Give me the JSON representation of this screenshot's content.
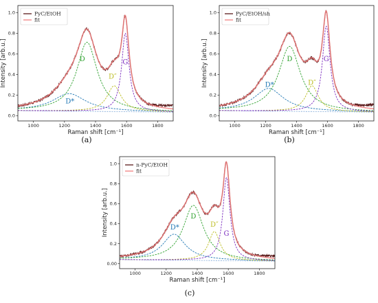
{
  "chart_data": [
    {
      "type": "line",
      "panel_label": "(a)",
      "xlabel": "Raman shift [cm⁻¹]",
      "ylabel": "Intensity [arb.u.]",
      "xlim": [
        900,
        1900
      ],
      "ylim": [
        -0.05,
        1.07
      ],
      "xticks": [
        1000,
        1200,
        1400,
        1600,
        1800
      ],
      "yticks": [
        0.0,
        0.2,
        0.4,
        0.6,
        0.8,
        1.0
      ],
      "ytick_labels": [
        "0.0",
        "0.2",
        "0.4",
        "0.6",
        "0.8",
        "1.0"
      ],
      "legend": {
        "position": "top-left",
        "entries": [
          "PyC/EtOH",
          "fit"
        ]
      },
      "baseline": {
        "start": 0.05,
        "end": 0.035
      },
      "measured_end_offset": 0.035,
      "peaks": [
        {
          "name": "D*",
          "center": 1230,
          "height": 0.17,
          "width": 260,
          "color": "#1f77b4",
          "label_x": 1235,
          "label_y": 0.12
        },
        {
          "name": "D",
          "center": 1345,
          "height": 0.67,
          "width": 160,
          "color": "#2ca02c",
          "label_x": 1315,
          "label_y": 0.53
        },
        {
          "name": "D″",
          "center": 1520,
          "height": 0.25,
          "width": 110,
          "color": "#bcbd22",
          "label_x": 1510,
          "label_y": 0.36
        },
        {
          "name": "G",
          "center": 1592,
          "height": 0.76,
          "width": 58,
          "color": "#7b2cbf",
          "label_x": 1592,
          "label_y": 0.5
        }
      ]
    },
    {
      "type": "line",
      "panel_label": "(b)",
      "xlabel": "Raman shift [cm⁻¹]",
      "ylabel": "Intensity [arb.u.]",
      "xlim": [
        900,
        1900
      ],
      "ylim": [
        -0.05,
        1.07
      ],
      "xticks": [
        1000,
        1200,
        1400,
        1600,
        1800
      ],
      "yticks": [
        0.0,
        0.2,
        0.4,
        0.6,
        0.8,
        1.0
      ],
      "ytick_labels": [
        "0.0",
        "0.2",
        "0.4",
        "0.6",
        "0.8",
        "1.0"
      ],
      "legend": {
        "position": "top-left",
        "entries": [
          "PyC/EtOH/sh",
          "fit"
        ]
      },
      "baseline": {
        "start": 0.05,
        "end": 0.035
      },
      "measured_end_offset": 0.04,
      "peaks": [
        {
          "name": "D*",
          "center": 1220,
          "height": 0.22,
          "width": 230,
          "color": "#1f77b4",
          "label_x": 1225,
          "label_y": 0.28
        },
        {
          "name": "D",
          "center": 1355,
          "height": 0.63,
          "width": 170,
          "color": "#2ca02c",
          "label_x": 1355,
          "label_y": 0.53
        },
        {
          "name": "D″",
          "center": 1500,
          "height": 0.25,
          "width": 100,
          "color": "#bcbd22",
          "label_x": 1500,
          "label_y": 0.3
        },
        {
          "name": "G",
          "center": 1592,
          "height": 0.83,
          "width": 60,
          "color": "#7b2cbf",
          "label_x": 1592,
          "label_y": 0.53
        }
      ]
    },
    {
      "type": "line",
      "panel_label": "(c)",
      "xlabel": "Raman shift [cm⁻¹]",
      "ylabel": "Intensity [arb.u.]",
      "xlim": [
        900,
        1900
      ],
      "ylim": [
        -0.05,
        1.07
      ],
      "xticks": [
        1000,
        1200,
        1400,
        1600,
        1800
      ],
      "yticks": [
        0.0,
        0.2,
        0.4,
        0.6,
        0.8,
        1.0
      ],
      "ytick_labels": [
        "0.00",
        "0.2",
        "0.4",
        "0.6",
        "0.8",
        "1.0"
      ],
      "legend": {
        "position": "top-left",
        "entries": [
          "n-PyC/EtOH",
          "fit"
        ]
      },
      "baseline": {
        "start": 0.04,
        "end": 0.025
      },
      "measured_end_offset": 0.025,
      "peaks": [
        {
          "name": "D*",
          "center": 1250,
          "height": 0.26,
          "width": 180,
          "color": "#1f77b4",
          "label_x": 1255,
          "label_y": 0.34
        },
        {
          "name": "D",
          "center": 1375,
          "height": 0.55,
          "width": 160,
          "color": "#2ca02c",
          "label_x": 1375,
          "label_y": 0.45
        },
        {
          "name": "D″",
          "center": 1510,
          "height": 0.29,
          "width": 90,
          "color": "#bcbd22",
          "label_x": 1510,
          "label_y": 0.37
        },
        {
          "name": "G",
          "center": 1588,
          "height": 0.83,
          "width": 56,
          "color": "#7b2cbf",
          "label_x": 1588,
          "label_y": 0.28
        }
      ]
    }
  ],
  "colors": {
    "measured": "#5a1a1a",
    "fit": "#f08080",
    "axis": "#222222"
  }
}
